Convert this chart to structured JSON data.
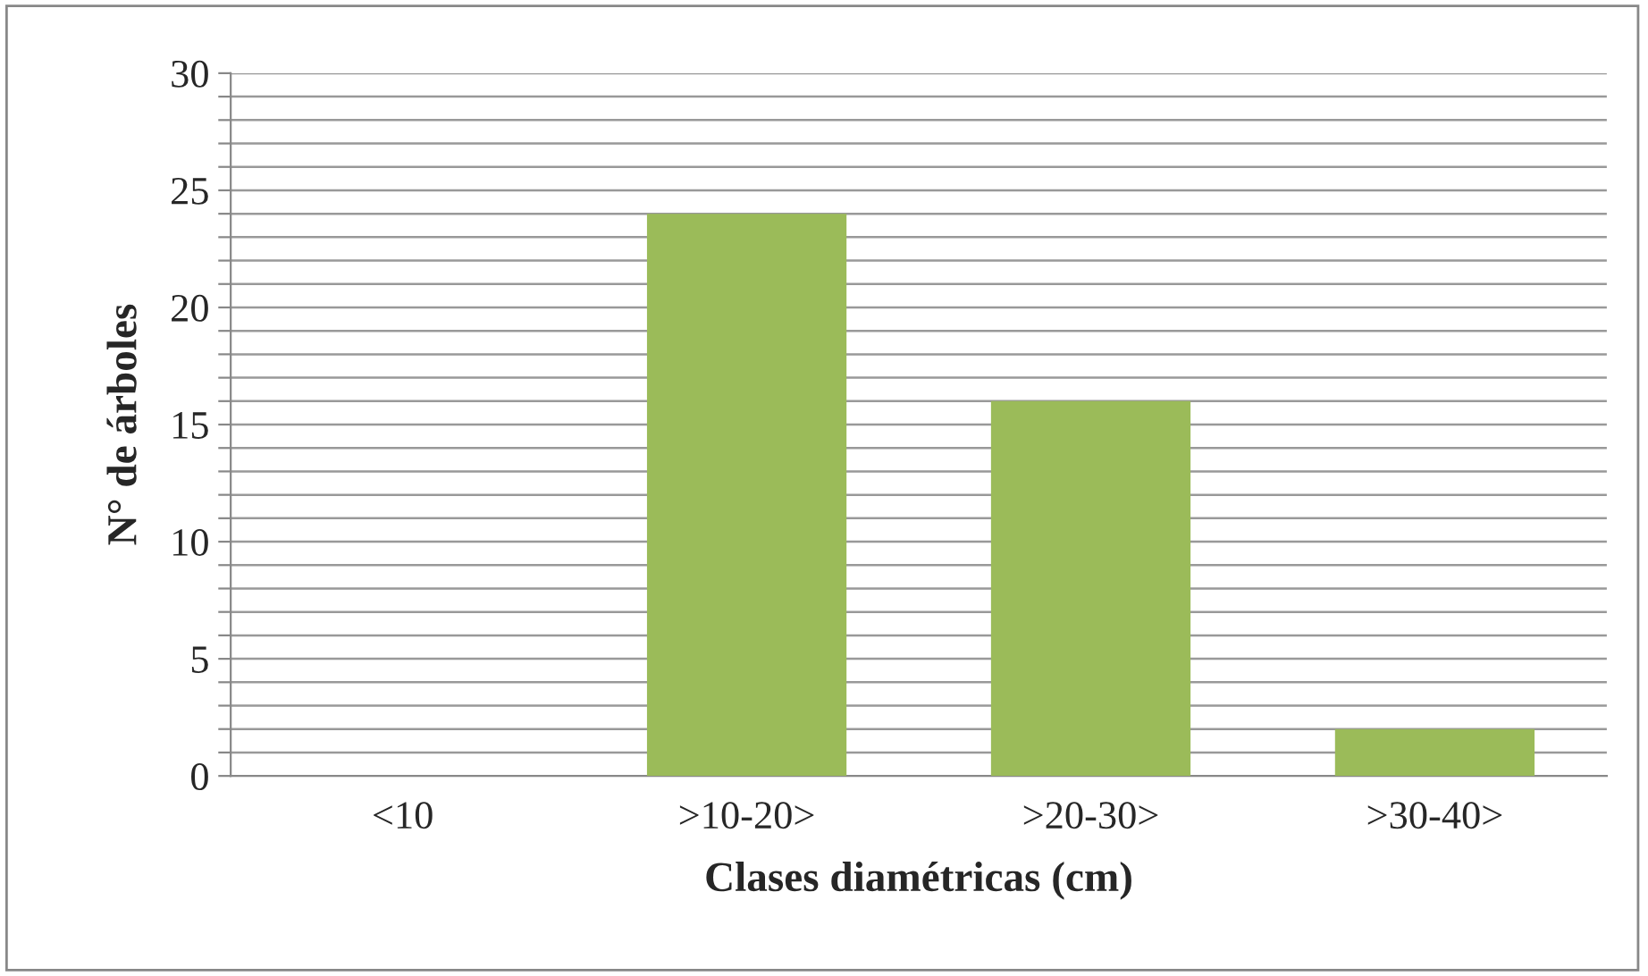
{
  "chart_data": {
    "type": "bar",
    "xlabel": "Clases diamétricas (cm)",
    "ylabel": "N° de árboles",
    "categories": [
      "<10",
      ">10-20>",
      ">20-30>",
      ">30-40>"
    ],
    "values": [
      0,
      24,
      16,
      2
    ],
    "color": "#9bbb59",
    "ylim": [
      0,
      30
    ],
    "yticks": [
      0,
      {
        "value": 1,
        "label": null
      },
      {
        "value": 2,
        "label": null
      },
      {
        "value": 3,
        "label": null
      },
      {
        "value": 4,
        "label": null
      },
      5,
      {
        "value": 6,
        "label": null
      },
      {
        "value": 7,
        "label": null
      },
      {
        "value": 8,
        "label": null
      },
      {
        "value": 9,
        "label": null
      },
      10,
      {
        "value": 11,
        "label": null
      },
      {
        "value": 12,
        "label": null
      },
      {
        "value": 13,
        "label": null
      },
      {
        "value": 14,
        "label": null
      },
      15,
      {
        "value": 16,
        "label": null
      },
      {
        "value": 17,
        "label": null
      },
      {
        "value": 18,
        "label": null
      },
      {
        "value": 19,
        "label": null
      },
      20,
      {
        "value": 21,
        "label": null
      },
      {
        "value": 22,
        "label": null
      },
      {
        "value": 23,
        "label": null
      },
      {
        "value": 24,
        "label": null
      },
      25,
      {
        "value": 26,
        "label": null
      },
      {
        "value": 27,
        "label": null
      },
      {
        "value": 28,
        "label": null
      },
      {
        "value": 29,
        "label": null
      },
      30
    ],
    "grid": "y",
    "legend": false
  }
}
